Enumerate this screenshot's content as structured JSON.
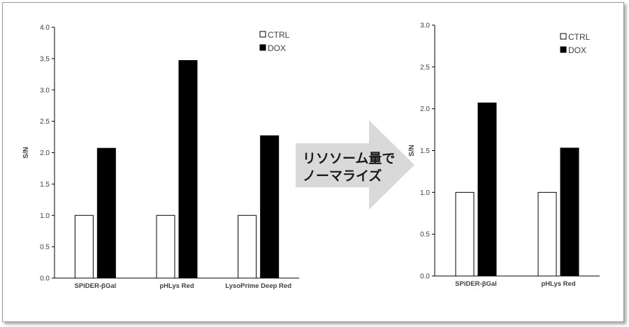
{
  "chart_data": [
    {
      "type": "bar",
      "title": "",
      "xlabel": "",
      "ylabel": "S/N",
      "ylim": [
        0,
        4.0
      ],
      "yticks": [
        "0.0",
        "0.5",
        "1.0",
        "1.5",
        "2.0",
        "2.5",
        "3.0",
        "3.5",
        "4.0"
      ],
      "categories": [
        "SPiDER-βGal",
        "pHLys Red",
        "LysoPrime Deep Red"
      ],
      "series": [
        {
          "name": "CTRL",
          "color": "#ffffff",
          "values": [
            1.0,
            1.0,
            1.0
          ]
        },
        {
          "name": "DOX",
          "color": "#000000",
          "values": [
            2.07,
            3.47,
            2.27
          ]
        }
      ],
      "legend_position": "top-right",
      "grid": false
    },
    {
      "type": "bar",
      "title": "",
      "xlabel": "",
      "ylabel": "S/N",
      "ylim": [
        0,
        3.0
      ],
      "yticks": [
        "0.0",
        "0.5",
        "1.0",
        "1.5",
        "2.0",
        "2.5",
        "3.0"
      ],
      "categories": [
        "SPiDER-βGal",
        "pHLys Red"
      ],
      "series": [
        {
          "name": "CTRL",
          "color": "#ffffff",
          "values": [
            1.0,
            1.0
          ]
        },
        {
          "name": "DOX",
          "color": "#000000",
          "values": [
            2.07,
            1.53
          ]
        }
      ],
      "legend_position": "top-right",
      "grid": false
    }
  ],
  "arrow": {
    "line1": "リソソーム量で",
    "line2": "ノーマライズ",
    "color": "#d9d9d9"
  }
}
